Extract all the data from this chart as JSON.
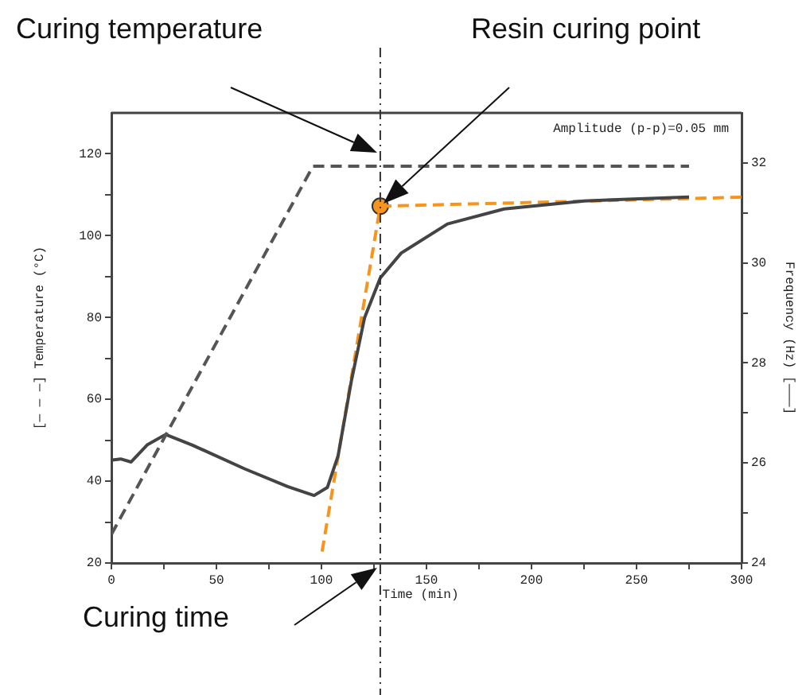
{
  "chart_data": {
    "type": "line",
    "xlabel": "Time (min)",
    "ylabel": "[— — —] Temperature (°C)",
    "y2label": "Frequency (Hz) [———]",
    "xlim": [
      0,
      300
    ],
    "xticks": [
      0,
      {
        "value": 25,
        "label": null
      },
      50,
      {
        "value": 75,
        "label": null
      },
      100,
      {
        "value": 125,
        "label": null
      },
      150,
      {
        "value": 175,
        "label": null
      },
      200,
      {
        "value": 225,
        "label": null
      },
      250,
      {
        "value": 275,
        "label": null
      },
      300
    ],
    "ylim": [
      20,
      130
    ],
    "yticks": [
      20,
      {
        "value": 30,
        "label": null
      },
      40,
      {
        "value": 50,
        "label": null
      },
      60,
      {
        "value": 70,
        "label": null
      },
      80,
      {
        "value": 90,
        "label": null
      },
      100,
      {
        "value": 110,
        "label": null
      },
      120
    ],
    "y2lim": [
      24,
      33
    ],
    "y2ticks": [
      24,
      {
        "value": 25,
        "label": null
      },
      26,
      {
        "value": 27,
        "label": null
      },
      28,
      {
        "value": 29,
        "label": null
      },
      30,
      {
        "value": 31,
        "label": null
      },
      32
    ],
    "series": [
      {
        "type": "line",
        "axis": "y",
        "color": "#555555",
        "line_style": "dashed",
        "marker": "none",
        "x": [
          0,
          96,
          275
        ],
        "values": [
          27,
          117,
          117
        ]
      },
      {
        "type": "line",
        "axis": "y2",
        "color": "#444444",
        "line_style": "solid",
        "marker": "none",
        "x": [
          0.5,
          4.4,
          9.4,
          17,
          25.8,
          38.4,
          63.6,
          83.9,
          96.5,
          102.8,
          107.9,
          114.2,
          120.5,
          128,
          138,
          160,
          187,
          225,
          275
        ],
        "values": [
          26.06,
          26.08,
          26.02,
          26.36,
          26.57,
          26.36,
          25.88,
          25.53,
          25.35,
          25.51,
          26.14,
          27.63,
          28.9,
          29.7,
          30.2,
          30.78,
          31.08,
          31.24,
          31.32
        ]
      },
      {
        "type": "line",
        "axis": "y",
        "color": "#f7941d",
        "line_style": "dashed",
        "marker": "none",
        "x": [
          100.3,
          128
        ],
        "values": [
          22.8,
          107.2
        ]
      },
      {
        "type": "line",
        "axis": "y",
        "color": "#f7941d",
        "line_style": "dashed",
        "marker": "none",
        "x": [
          128,
          300
        ],
        "values": [
          107.2,
          109.4
        ]
      },
      {
        "type": "scatter",
        "axis": "y",
        "color": "#f7941d",
        "marker": "circle",
        "x": [
          128
        ],
        "values": [
          107.2
        ]
      }
    ],
    "ref_lines": [
      {
        "axis": "x",
        "value": 128,
        "color": "#333333",
        "line_style": "dashdot"
      }
    ],
    "annotations": [
      "Curing temperature",
      "Resin curing point",
      "Curing time",
      "Amplitude (p-p)=0.05 mm"
    ],
    "grid": false,
    "legend": false
  }
}
